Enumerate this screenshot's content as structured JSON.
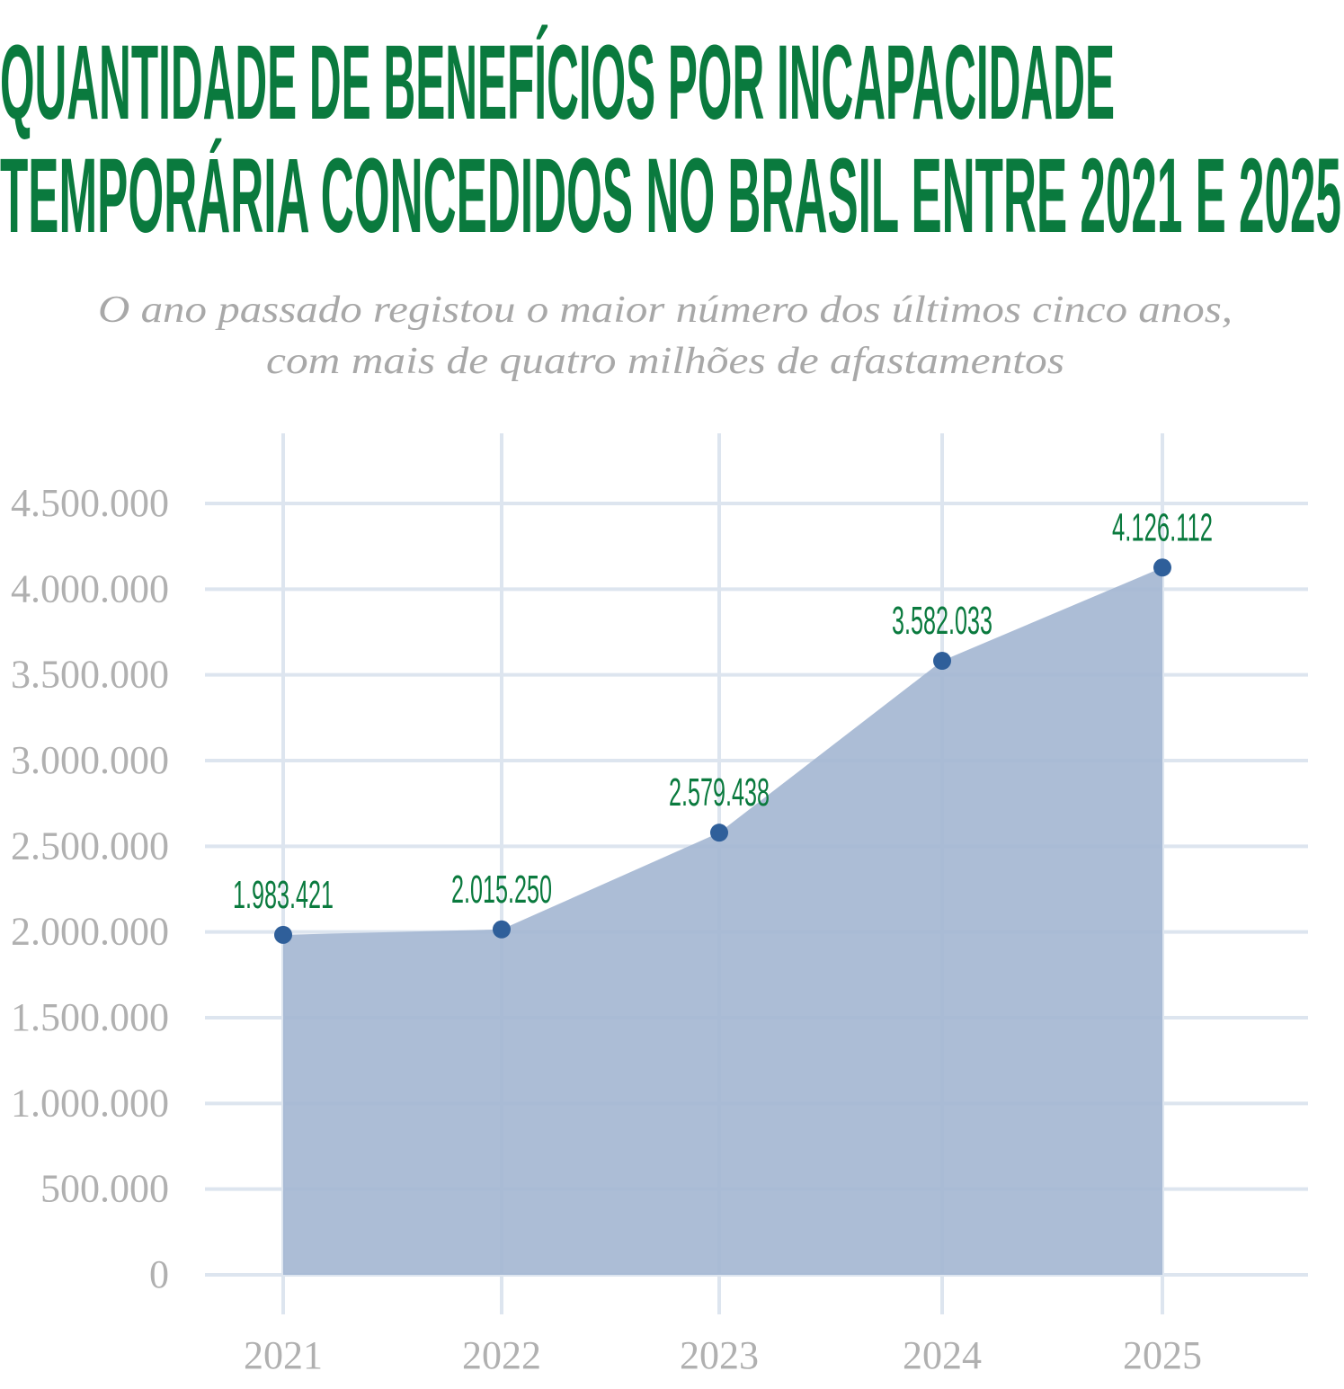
{
  "chart_data": {
    "type": "area",
    "title": [
      "QUANTIDADE DE BENEFÍCIOS POR INCAPACIDADE",
      "TEMPORÁRIA CONCEDIDOS NO BRASIL ENTRE 2021 E 2025"
    ],
    "subtitle": [
      "O ano passado registou o maior número dos últimos cinco anos,",
      "com mais de quatro milhões de afastamentos"
    ],
    "categories": [
      "2021",
      "2022",
      "2023",
      "2024",
      "2025"
    ],
    "values": [
      1983421,
      2015250,
      2579438,
      3582033,
      4126112
    ],
    "data_labels": [
      "1.983.421",
      "2.015.250",
      "2.579.438",
      "3.582.033",
      "4.126.112"
    ],
    "y_ticks": [
      "0",
      "500.000",
      "1.000.000",
      "1.500.000",
      "2.000.000",
      "2.500.000",
      "3.000.000",
      "3.500.000",
      "4.000.000",
      "4.500.000"
    ],
    "ylim": [
      0,
      4500000
    ],
    "grid": true,
    "colors": {
      "title": "#0a7a3e",
      "fill": "#a3b6d2",
      "point": "#2f5f9a",
      "grid": "#dde5ef",
      "label": "#0a7a3e"
    }
  }
}
